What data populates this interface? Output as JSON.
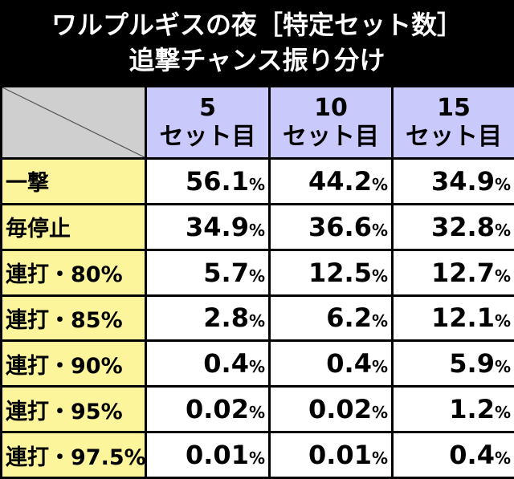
{
  "title": {
    "line1": "ワルプルギスの夜［特定セット数］",
    "line2": "追撃チャンス振り分け"
  },
  "columns": [
    {
      "num": "5",
      "unit": "セット目"
    },
    {
      "num": "10",
      "unit": "セット目"
    },
    {
      "num": "15",
      "unit": "セット目"
    }
  ],
  "rows": [
    {
      "label": "一撃",
      "values": [
        "56.1",
        "44.2",
        "34.9"
      ]
    },
    {
      "label": "毎停止",
      "values": [
        "34.9",
        "36.6",
        "32.8"
      ]
    },
    {
      "label": "連打・80%",
      "values": [
        "5.7",
        "12.5",
        "12.7"
      ]
    },
    {
      "label": "連打・85%",
      "values": [
        "2.8",
        "6.2",
        "12.1"
      ]
    },
    {
      "label": "連打・90%",
      "values": [
        "0.4",
        "0.4",
        "5.9"
      ]
    },
    {
      "label": "連打・95%",
      "values": [
        "0.02",
        "0.02",
        "1.2"
      ]
    },
    {
      "label": "連打・97.5%",
      "values": [
        "0.01",
        "0.01",
        "0.4"
      ]
    }
  ],
  "percent_sign": "%",
  "colors": {
    "background": "#000000",
    "header": "#c9c9fb",
    "row_label": "#fdf59b",
    "corner": "#cfcfcf",
    "cell": "#ffffff"
  }
}
